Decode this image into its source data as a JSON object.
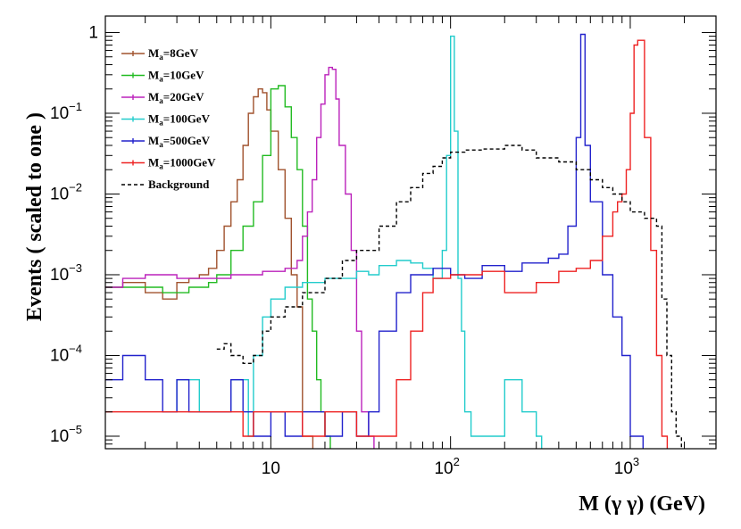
{
  "chart_data": {
    "type": "line",
    "title": "",
    "xlabel": "M (γ  γ) (GeV)",
    "ylabel": "Events  ( scaled to one )",
    "x_scale": "log",
    "y_scale": "log",
    "xlim": [
      1.2,
      3000
    ],
    "ylim": [
      7e-06,
      1.6
    ],
    "grid": false,
    "legend_position": "top-left",
    "x_ticks": [
      {
        "value": 10,
        "base": "10",
        "exp": ""
      },
      {
        "value": 100,
        "base": "10",
        "exp": "2"
      },
      {
        "value": 1000,
        "base": "10",
        "exp": "3"
      }
    ],
    "y_ticks": [
      {
        "value": 1,
        "base": "1",
        "exp": ""
      },
      {
        "value": 0.1,
        "base": "10",
        "exp": "−1"
      },
      {
        "value": 0.01,
        "base": "10",
        "exp": "−2"
      },
      {
        "value": 0.001,
        "base": "10",
        "exp": "−3"
      },
      {
        "value": 0.0001,
        "base": "10",
        "exp": "−4"
      },
      {
        "value": 1e-05,
        "base": "10",
        "exp": "−5"
      }
    ],
    "series": [
      {
        "label_main": "M",
        "label_sub": "a",
        "label_rest": "=8GeV",
        "color": "#a0522d",
        "dashed": false,
        "x": [
          1.2,
          1.5,
          2,
          2.5,
          3,
          3.5,
          4,
          4.5,
          5,
          5.5,
          6,
          6.5,
          7,
          7.5,
          8,
          8.5,
          9,
          9.5,
          10,
          11,
          12,
          13,
          14,
          15,
          16
        ],
        "y": [
          0.0007,
          0.0008,
          0.0006,
          0.0005,
          0.0008,
          0.0009,
          0.001,
          0.0012,
          0.002,
          0.004,
          0.008,
          0.015,
          0.04,
          0.1,
          0.16,
          0.2,
          0.18,
          0.11,
          0.06,
          0.02,
          0.005,
          0.001,
          0.0004,
          1e-05,
          1e-05
        ]
      },
      {
        "label_main": "M",
        "label_sub": "a",
        "label_rest": "=10GeV",
        "color": "#22bb22",
        "dashed": false,
        "x": [
          1.2,
          1.5,
          2,
          2.5,
          3,
          3.5,
          4,
          4.5,
          5,
          6,
          7,
          8,
          9,
          10,
          11,
          12,
          13,
          14,
          15,
          16,
          17,
          18,
          19,
          20
        ],
        "y": [
          0.0007,
          0.0007,
          0.0007,
          0.0006,
          0.0006,
          0.0007,
          0.0007,
          0.0008,
          0.001,
          0.002,
          0.004,
          0.008,
          0.03,
          0.2,
          0.22,
          0.12,
          0.05,
          0.02,
          0.004,
          0.0005,
          0.0002,
          5e-05,
          2e-05,
          1e-05
        ]
      },
      {
        "label_main": "M",
        "label_sub": "a",
        "label_rest": "=20GeV",
        "color": "#bb22bb",
        "dashed": false,
        "x": [
          1.2,
          1.5,
          2,
          3,
          4,
          5,
          6,
          7,
          8,
          9,
          10,
          12,
          14,
          15,
          16,
          17,
          18,
          19,
          20,
          21,
          22,
          23,
          24,
          26,
          28,
          30,
          32,
          35
        ],
        "y": [
          0.0007,
          0.0009,
          0.001,
          0.0009,
          0.0009,
          0.0009,
          0.001,
          0.001,
          0.001,
          0.0011,
          0.0011,
          0.0012,
          0.0015,
          0.003,
          0.006,
          0.015,
          0.05,
          0.13,
          0.3,
          0.37,
          0.35,
          0.15,
          0.04,
          0.01,
          0.002,
          0.0002,
          2e-05,
          1e-05
        ]
      },
      {
        "label_main": "M",
        "label_sub": "a",
        "label_rest": "=100GeV",
        "color": "#22cccc",
        "dashed": false,
        "x": [
          2.5,
          3,
          4,
          5,
          6,
          7,
          7.5,
          8,
          9,
          10,
          12,
          15,
          20,
          25,
          30,
          35,
          40,
          50,
          60,
          70,
          80,
          90,
          95,
          100,
          105,
          110,
          115,
          120,
          130,
          150,
          200,
          250,
          300
        ],
        "y": [
          2e-05,
          5e-05,
          2e-05,
          2e-05,
          5e-05,
          5e-05,
          1e-05,
          0.0001,
          0.0003,
          0.0005,
          0.0007,
          0.0008,
          0.0009,
          0.0009,
          0.0011,
          0.001,
          0.0013,
          0.0015,
          0.0014,
          0.0012,
          0.0009,
          0.002,
          0.03,
          0.9,
          0.06,
          0.0009,
          0.0002,
          2e-05,
          1e-05,
          1e-05,
          5e-05,
          2e-05,
          1e-05
        ]
      },
      {
        "label_main": "M",
        "label_sub": "a",
        "label_rest": "=500GeV",
        "color": "#2222cc",
        "dashed": false,
        "x": [
          1.2,
          1.5,
          2,
          2.5,
          3,
          3.5,
          4,
          5,
          6,
          7,
          8,
          10,
          12,
          15,
          20,
          25,
          30,
          35,
          40,
          50,
          60,
          80,
          100,
          120,
          150,
          200,
          250,
          300,
          350,
          400,
          450,
          500,
          530,
          560,
          600,
          700,
          800,
          900,
          1000,
          1100
        ],
        "y": [
          5e-05,
          0.0001,
          5e-05,
          2e-05,
          5e-05,
          2e-05,
          2e-05,
          2e-05,
          5e-05,
          2e-05,
          1e-05,
          2e-05,
          1e-05,
          2e-05,
          1e-05,
          2e-05,
          1e-05,
          2e-05,
          0.0002,
          0.0006,
          0.001,
          0.0012,
          0.001,
          0.0009,
          0.0013,
          0.0011,
          0.0014,
          0.0014,
          0.0016,
          0.0018,
          0.004,
          0.05,
          0.95,
          0.04,
          0.008,
          0.001,
          0.0003,
          0.0001,
          1e-05,
          1e-05
        ]
      },
      {
        "label_main": "M",
        "label_sub": "a",
        "label_rest": "=1000GeV",
        "color": "#ee2222",
        "dashed": false,
        "x": [
          1.2,
          2,
          2.5,
          3,
          3.5,
          4,
          5,
          6,
          7,
          8,
          10,
          15,
          20,
          30,
          40,
          50,
          60,
          70,
          80,
          100,
          150,
          200,
          300,
          400,
          500,
          600,
          700,
          800,
          850,
          900,
          950,
          1000,
          1050,
          1100,
          1200,
          1300,
          1400,
          1500
        ],
        "y": [
          2e-05,
          2e-05,
          2e-05,
          2e-05,
          2e-05,
          2e-05,
          2e-05,
          2e-05,
          1e-05,
          2e-05,
          2e-05,
          1e-05,
          2e-05,
          1e-05,
          1e-05,
          5e-05,
          0.0002,
          0.0006,
          0.0009,
          0.001,
          0.0011,
          0.0006,
          0.0008,
          0.0011,
          0.0012,
          0.0015,
          0.003,
          0.006,
          0.008,
          0.01,
          0.02,
          0.1,
          0.7,
          0.8,
          0.05,
          0.002,
          0.0001,
          1e-05
        ]
      },
      {
        "label_main": "Background",
        "label_sub": "",
        "label_rest": "",
        "color": "#000000",
        "dashed": true,
        "x": [
          5,
          5.5,
          6,
          7,
          8,
          9,
          10,
          12,
          15,
          20,
          25,
          30,
          40,
          50,
          60,
          70,
          80,
          90,
          100,
          120,
          150,
          200,
          250,
          300,
          400,
          500,
          600,
          700,
          800,
          900,
          1000,
          1200,
          1400,
          1500,
          1600,
          1700,
          1800
        ],
        "y": [
          0.00012,
          0.00014,
          0.0001,
          8e-05,
          0.0001,
          0.0002,
          0.0003,
          0.0004,
          0.0006,
          0.0009,
          0.0015,
          0.002,
          0.004,
          0.008,
          0.012,
          0.018,
          0.022,
          0.028,
          0.033,
          0.035,
          0.036,
          0.04,
          0.035,
          0.028,
          0.025,
          0.02,
          0.015,
          0.012,
          0.01,
          0.008,
          0.006,
          0.005,
          0.004,
          0.0005,
          0.0001,
          2e-05,
          1e-05
        ]
      }
    ]
  }
}
